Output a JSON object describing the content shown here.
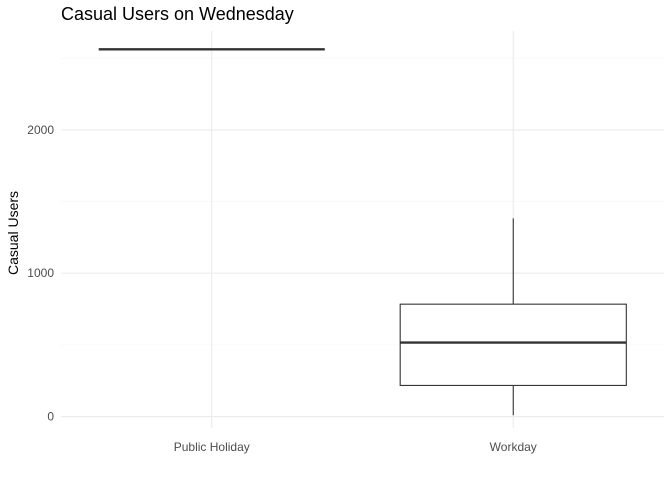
{
  "chart_data": {
    "type": "boxplot",
    "title": "Casual Users on Wednesday",
    "xlabel": "",
    "ylabel": "Casual Users",
    "categories": [
      "Public Holiday",
      "Workday"
    ],
    "boxes": [
      {
        "category": "Public Holiday",
        "min": 2562,
        "q1": 2562,
        "median": 2562,
        "q3": 2562,
        "max": 2562
      },
      {
        "category": "Workday",
        "min": 9,
        "q1": 217,
        "median": 516,
        "q3": 784,
        "max": 1383
      }
    ],
    "y_ticks": [
      0,
      1000,
      2000
    ],
    "y_tick_labels": [
      "0",
      "1000",
      "2000"
    ],
    "ylim": [
      -80,
      2690
    ],
    "grid": true,
    "legend": "none"
  }
}
